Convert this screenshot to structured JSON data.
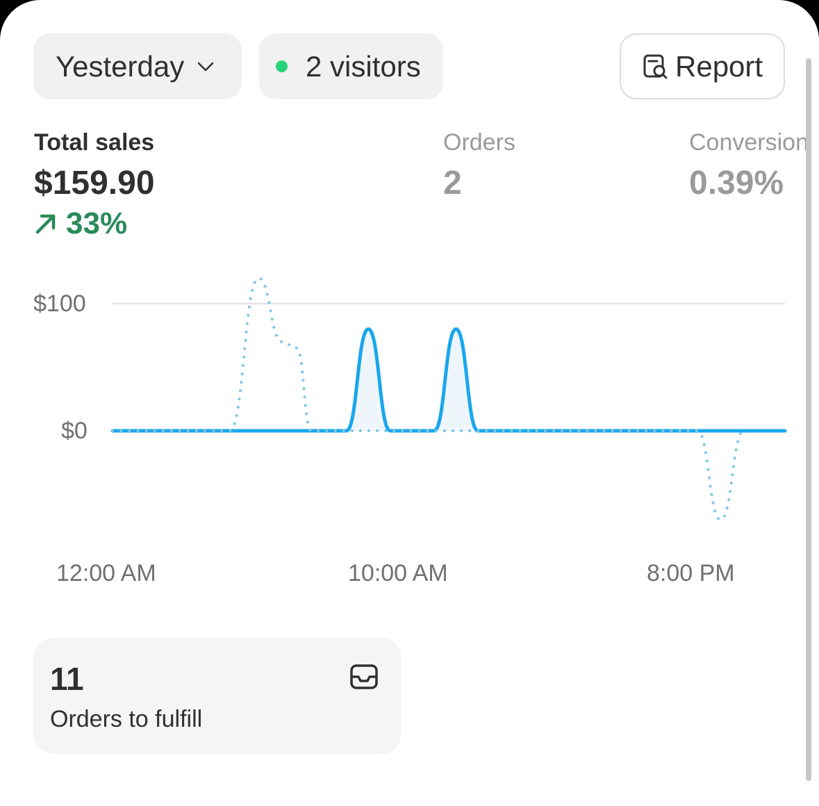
{
  "header": {
    "date_label": "Yesterday",
    "visitors_label": "2 visitors",
    "report_label": "Report"
  },
  "metrics": {
    "total_sales": {
      "label": "Total sales",
      "value": "$159.90",
      "change": "33%"
    },
    "orders": {
      "label": "Orders",
      "value": "2"
    },
    "conversion": {
      "label": "Conversion",
      "value": "0.39%"
    }
  },
  "colors": {
    "accent": "#1aa7ec",
    "previous": "#7cc6e6",
    "positive": "#2a8a5a",
    "live_dot": "#29d27a"
  },
  "chart_data": {
    "type": "line",
    "y_ticks": [
      "$100",
      "$0"
    ],
    "x_ticks": [
      "12:00 AM",
      "10:00 AM",
      "8:00 PM"
    ],
    "ylim": [
      -70,
      120
    ],
    "series": [
      {
        "style": "solid",
        "values": [
          [
            0,
            0
          ],
          [
            8,
            0
          ],
          [
            8.75,
            80
          ],
          [
            9.5,
            0
          ],
          [
            11,
            0
          ],
          [
            11.75,
            80
          ],
          [
            12.5,
            0
          ],
          [
            23,
            0
          ]
        ]
      },
      {
        "style": "dotted",
        "values": [
          [
            0,
            0
          ],
          [
            4,
            0
          ],
          [
            5,
            120
          ],
          [
            5.8,
            70
          ],
          [
            6.3,
            65
          ],
          [
            6.8,
            0
          ],
          [
            20,
            0
          ],
          [
            20.8,
            -70
          ],
          [
            21.6,
            0
          ]
        ]
      }
    ]
  },
  "fulfill": {
    "count": "11",
    "label": "Orders to fulfill"
  }
}
